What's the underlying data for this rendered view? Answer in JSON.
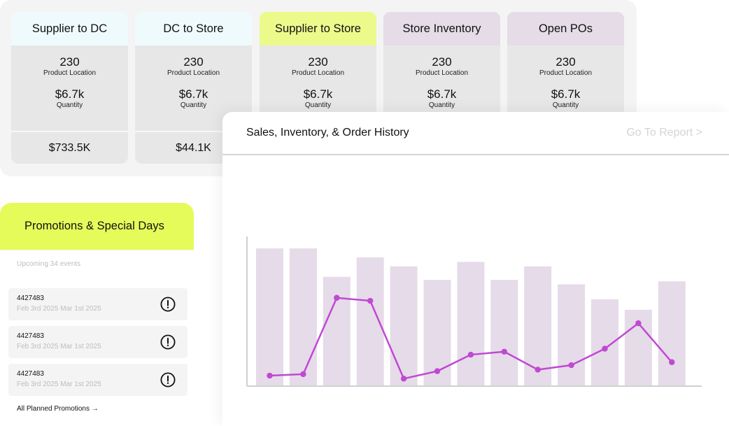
{
  "kpis": [
    {
      "title": "Supplier to DC",
      "header_color": "#effafc",
      "product_location_value": "230",
      "product_location_label": "Product Location",
      "quantity_value": "$6.7k",
      "quantity_label": "Quantity",
      "total": "$733.5K"
    },
    {
      "title": "DC to Store",
      "header_color": "#effafc",
      "product_location_value": "230",
      "product_location_label": "Product Location",
      "quantity_value": "$6.7k",
      "quantity_label": "Quantity",
      "total": "$44.1K"
    },
    {
      "title": "Supplier to Store",
      "header_color": "#ecfa8c",
      "product_location_value": "230",
      "product_location_label": "Product Location",
      "quantity_value": "$6.7k",
      "quantity_label": "Quantity",
      "total": ""
    },
    {
      "title": "Store Inventory",
      "header_color": "#e5dce8",
      "product_location_value": "230",
      "product_location_label": "Product Location",
      "quantity_value": "$6.7k",
      "quantity_label": "Quantity",
      "total": ""
    },
    {
      "title": "Open POs",
      "header_color": "#e5dce8",
      "product_location_value": "230",
      "product_location_label": "Product Location",
      "quantity_value": "$6.7k",
      "quantity_label": "Quantity",
      "total": ""
    }
  ],
  "sales_panel": {
    "title": "Sales, Inventory, & Order History",
    "link_label": "Go To Report >"
  },
  "promotions": {
    "title": "Promotions & Special Days",
    "subtitle": "Upcoming 34 events",
    "events": [
      {
        "id": "4427483",
        "dates": "Feb 3rd 2025 Mar 1st 2025",
        "icon": "alert-circle-icon"
      },
      {
        "id": "4427483",
        "dates": "Feb 3rd 2025 Mar 1st 2025",
        "icon": "alert-circle-icon"
      },
      {
        "id": "4427483",
        "dates": "Feb 3rd 2025 Mar 1st 2025",
        "icon": "alert-circle-icon"
      }
    ],
    "link_label": "All Planned Promotions →"
  },
  "colors": {
    "bar": "#e6dbe8",
    "line": "#bf49d3",
    "promo_header": "#e5fb5a"
  },
  "chart_data": {
    "type": "bar",
    "series": [
      {
        "values": [
          92,
          92,
          73,
          86,
          80,
          71,
          83,
          71,
          80,
          68,
          58,
          51,
          70
        ]
      },
      {
        "type": "line",
        "values": [
          7,
          8,
          59,
          57,
          5,
          10,
          21,
          23,
          11,
          14,
          25,
          42,
          16
        ]
      }
    ],
    "ylim": [
      0,
      100
    ],
    "grid": false,
    "legend": "none"
  }
}
